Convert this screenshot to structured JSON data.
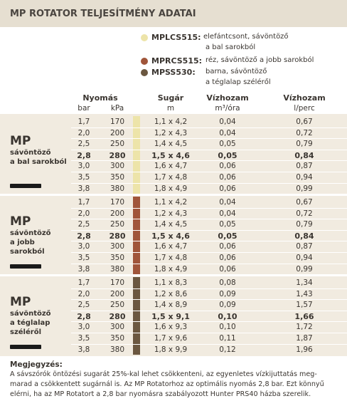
{
  "header": {
    "title": "MP ROTATOR TELJESÍTMÉNY ADATAI"
  },
  "legend": [
    {
      "code": "MPLCS515:",
      "lines": [
        "elefántcsont, sávöntöző",
        "a bal sarokból"
      ],
      "color": "#ede4a9"
    },
    {
      "code": "MPRCS515:",
      "lines": [
        "réz, sávöntöző a jobb sarokból"
      ],
      "color": "#a0553a"
    },
    {
      "code": "MPSS530:",
      "lines": [
        "barna, sávöntöző",
        "a téglalap széléről"
      ],
      "color": "#6b5740"
    }
  ],
  "table": {
    "headers": [
      {
        "label": "Nyomás",
        "units": [
          "bar",
          "kPa"
        ]
      },
      {
        "label": "Sugár",
        "units": [
          "m"
        ]
      },
      {
        "label": "Vízhozam",
        "units": [
          "m³/óra"
        ]
      },
      {
        "label": "Vízhozam",
        "units": [
          "l/perc"
        ]
      }
    ],
    "groups": [
      {
        "title": "MP",
        "lines": [
          "sávöntöző",
          "a bal sarokból"
        ],
        "color": "#ede4a9",
        "rows": [
          [
            "1,7",
            "170",
            "1,1 x 4,2",
            "0,04",
            "0,67"
          ],
          [
            "2,0",
            "200",
            "1,2 x 4,3",
            "0,04",
            "0,72"
          ],
          [
            "2,5",
            "250",
            "1,4 x 4,5",
            "0,05",
            "0,79"
          ],
          [
            "2,8",
            "280",
            "1,5 x 4,6",
            "0,05",
            "0,84"
          ],
          [
            "3,0",
            "300",
            "1,6 x 4,7",
            "0,06",
            "0,87"
          ],
          [
            "3,5",
            "350",
            "1,7 x 4,8",
            "0,06",
            "0,94"
          ],
          [
            "3,8",
            "380",
            "1,8 x 4,9",
            "0,06",
            "0,99"
          ]
        ]
      },
      {
        "title": "MP",
        "lines": [
          "sávöntöző",
          "a jobb",
          "sarokból"
        ],
        "color": "#a0553a",
        "rows": [
          [
            "1,7",
            "170",
            "1,1 x 4,2",
            "0,04",
            "0,67"
          ],
          [
            "2,0",
            "200",
            "1,2 x 4,3",
            "0,04",
            "0,72"
          ],
          [
            "2,5",
            "250",
            "1,4 x 4,5",
            "0,05",
            "0,79"
          ],
          [
            "2,8",
            "280",
            "1,5 x 4,6",
            "0,05",
            "0,84"
          ],
          [
            "3,0",
            "300",
            "1,6 x 4,7",
            "0,06",
            "0,87"
          ],
          [
            "3,5",
            "350",
            "1,7 x 4,8",
            "0,06",
            "0,94"
          ],
          [
            "3,8",
            "380",
            "1,8 x 4,9",
            "0,06",
            "0,99"
          ]
        ]
      },
      {
        "title": "MP",
        "lines": [
          "sávöntöző",
          "a téglalap",
          "széléről"
        ],
        "color": "#6b5740",
        "rows": [
          [
            "1,7",
            "170",
            "1,1 x 8,3",
            "0,08",
            "1,34"
          ],
          [
            "2,0",
            "200",
            "1,2 x 8,6",
            "0,09",
            "1,43"
          ],
          [
            "2,5",
            "250",
            "1,4 x 8,9",
            "0,09",
            "1,57"
          ],
          [
            "2,8",
            "280",
            "1,5 x 9,1",
            "0,10",
            "1,66"
          ],
          [
            "3,0",
            "300",
            "1,6 x 9,3",
            "0,10",
            "1,72"
          ],
          [
            "3,5",
            "350",
            "1,7 x 9,6",
            "0,11",
            "1,87"
          ],
          [
            "3,8",
            "380",
            "1,8 x 9,9",
            "0,12",
            "1,96"
          ]
        ]
      }
    ]
  },
  "note": {
    "title": "Megjegyzés:",
    "lines": [
      "A sávszórók öntözési sugarát 25%-kal lehet csökkenteni, az egyenletes vízkijuttatás meg-",
      "marad a csökkentett sugárnál is.  Az MP Rotatorhoz az optimális nyomás 2,8 bar. Ezt könnyű",
      "elérni, ha az MP Rotatort a 2,8 bar nyomásra szabályozott Hunter PRS40 házba szerelik."
    ]
  }
}
